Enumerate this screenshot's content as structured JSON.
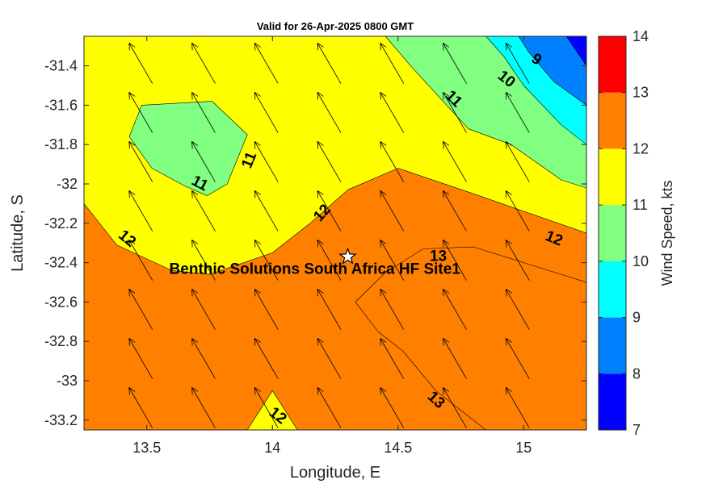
{
  "chart_data": {
    "type": "filled-contour",
    "title": "Valid for 26-Apr-2025 0800 GMT",
    "xlabel": "Longitude, E",
    "ylabel": "Latitude, S",
    "xlim": [
      13.25,
      15.25
    ],
    "ylim": [
      -33.25,
      -31.25
    ],
    "x_ticks": [
      13.5,
      14,
      14.5,
      15
    ],
    "x_tick_labels": [
      "13.5",
      "14",
      "14.5",
      "15"
    ],
    "y_ticks": [
      -31.4,
      -31.6,
      -31.8,
      -32,
      -32.2,
      -32.4,
      -32.6,
      -32.8,
      -33,
      -33.2
    ],
    "y_tick_labels": [
      "-31.4",
      "-31.6",
      "-31.8",
      "-32",
      "-32.2",
      "-32.4",
      "-32.6",
      "-32.8",
      "-33",
      "-33.2"
    ],
    "colorbar": {
      "label": "Wind Speed, kts",
      "levels": [
        7,
        8,
        9,
        10,
        11,
        12,
        13,
        14
      ],
      "tick_labels": [
        "7",
        "8",
        "9",
        "10",
        "11",
        "12",
        "13",
        "14"
      ],
      "colors": [
        "#0000ff",
        "#0080ff",
        "#00ffff",
        "#80ff80",
        "#ffff00",
        "#ff8000",
        "#ff0000"
      ]
    },
    "regions": [
      {
        "level": 11,
        "color": "#ffff00",
        "points": [
          [
            13.25,
            -31.25
          ],
          [
            14.85,
            -31.25
          ],
          [
            15.25,
            -31.8
          ],
          [
            15.25,
            -32.25
          ],
          [
            14.8,
            -32.05
          ],
          [
            14.5,
            -31.92
          ],
          [
            14.3,
            -32.03
          ],
          [
            14.15,
            -32.2
          ],
          [
            14.0,
            -32.35
          ],
          [
            13.75,
            -32.46
          ],
          [
            13.6,
            -32.44
          ],
          [
            13.38,
            -32.31
          ],
          [
            13.25,
            -32.1
          ]
        ]
      },
      {
        "level": 10,
        "color": "#80ff80",
        "points": [
          [
            14.85,
            -31.25
          ],
          [
            15.25,
            -31.25
          ],
          [
            15.25,
            -32.02
          ],
          [
            15.15,
            -31.98
          ],
          [
            14.95,
            -31.8
          ],
          [
            14.78,
            -31.72
          ],
          [
            14.55,
            -31.4
          ],
          [
            14.45,
            -31.25
          ]
        ]
      },
      {
        "level": 9,
        "color": "#00ffff",
        "points": [
          [
            14.85,
            -31.25
          ],
          [
            15.25,
            -31.25
          ],
          [
            15.25,
            -31.8
          ],
          [
            15.15,
            -31.7
          ],
          [
            15.0,
            -31.5
          ],
          [
            14.92,
            -31.35
          ]
        ]
      },
      {
        "level": 8,
        "color": "#0080ff",
        "points": [
          [
            14.98,
            -31.25
          ],
          [
            15.25,
            -31.25
          ],
          [
            15.25,
            -31.6
          ],
          [
            15.12,
            -31.48
          ],
          [
            15.02,
            -31.33
          ]
        ]
      },
      {
        "level": 7,
        "color": "#0000ff",
        "points": [
          [
            15.17,
            -31.25
          ],
          [
            15.25,
            -31.25
          ],
          [
            15.25,
            -31.4
          ]
        ]
      },
      {
        "level": 10,
        "color": "#80ff80",
        "points": [
          [
            13.48,
            -31.6
          ],
          [
            13.76,
            -31.58
          ],
          [
            13.9,
            -31.75
          ],
          [
            13.82,
            -32.0
          ],
          [
            13.74,
            -32.06
          ],
          [
            13.65,
            -32.01
          ],
          [
            13.52,
            -31.92
          ],
          [
            13.43,
            -31.76
          ]
        ]
      },
      {
        "level": 12,
        "color": "#ff8000",
        "points": [
          [
            14.33,
            -32.6
          ],
          [
            14.45,
            -32.45
          ],
          [
            14.6,
            -32.33
          ],
          [
            14.8,
            -32.32
          ],
          [
            15.0,
            -32.4
          ],
          [
            15.25,
            -32.5
          ],
          [
            15.25,
            -33.25
          ],
          [
            14.85,
            -33.25
          ],
          [
            14.65,
            -33.05
          ],
          [
            14.52,
            -32.85
          ],
          [
            14.42,
            -32.75
          ]
        ]
      },
      {
        "level": 11,
        "color": "#ffff00",
        "points": [
          [
            13.9,
            -33.25
          ],
          [
            14.0,
            -33.05
          ],
          [
            14.1,
            -33.25
          ]
        ]
      }
    ],
    "site": {
      "name": "Benthic Solutions South Africa HF Site1",
      "lon": 14.3,
      "lat": -32.37
    },
    "contour_labels": [
      {
        "text": "9",
        "lon": 15.05,
        "lat": -31.37,
        "angle": 32
      },
      {
        "text": "10",
        "lon": 14.93,
        "lat": -31.47,
        "angle": 38
      },
      {
        "text": "11",
        "lon": 14.72,
        "lat": -31.57,
        "angle": 45
      },
      {
        "text": "11",
        "lon": 13.91,
        "lat": -31.88,
        "angle": -68
      },
      {
        "text": "11",
        "lon": 13.71,
        "lat": -32.0,
        "angle": 28
      },
      {
        "text": "12",
        "lon": 14.2,
        "lat": -32.15,
        "angle": -48
      },
      {
        "text": "12",
        "lon": 13.42,
        "lat": -32.28,
        "angle": 40
      },
      {
        "text": "12",
        "lon": 15.12,
        "lat": -32.28,
        "angle": 22
      },
      {
        "text": "13",
        "lon": 14.66,
        "lat": -32.37,
        "angle": 0
      },
      {
        "text": "13",
        "lon": 14.65,
        "lat": -33.1,
        "angle": 42
      },
      {
        "text": "12",
        "lon": 14.02,
        "lat": -33.18,
        "angle": 38
      }
    ],
    "wind_vectors": {
      "lons": [
        13.5,
        13.75,
        14.0,
        14.25,
        14.5,
        14.75,
        15.0
      ],
      "lats": [
        -31.4,
        -31.65,
        -31.9,
        -32.15,
        -32.4,
        -32.65,
        -32.9,
        -33.15
      ],
      "direction_deg": 330
    }
  }
}
